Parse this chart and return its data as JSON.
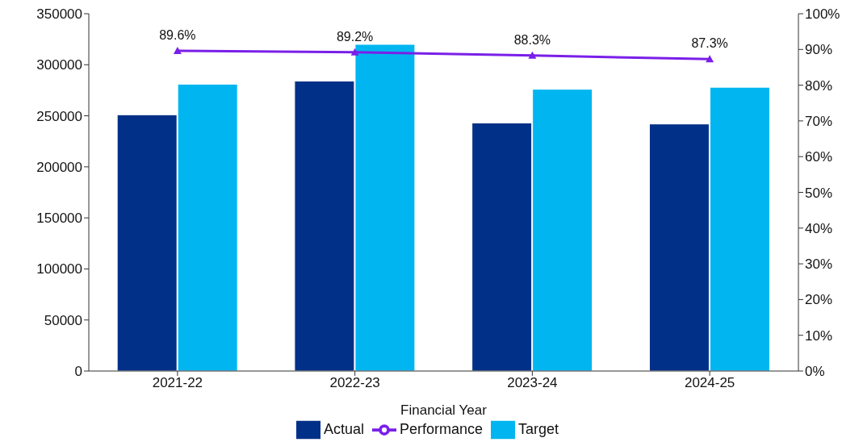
{
  "chart_data": {
    "type": "bar",
    "xlabel": "Financial Year",
    "categories": [
      "2021-22",
      "2022-23",
      "2023-24",
      "2024-25"
    ],
    "series": [
      {
        "name": "Actual",
        "color": "#003087",
        "values": [
          251000,
          284000,
          243000,
          242000
        ]
      },
      {
        "name": "Target",
        "color": "#00b5f0",
        "values": [
          281000,
          320000,
          276000,
          278000
        ]
      },
      {
        "name": "Performance",
        "type": "line",
        "axis": "y2",
        "color": "#7a1fe8",
        "values": [
          89.6,
          89.2,
          88.3,
          87.3
        ],
        "value_labels": [
          "89.6%",
          "89.2%",
          "88.3%",
          "87.3%"
        ],
        "marker": "triangle"
      }
    ],
    "ylim": [
      0,
      350000
    ],
    "yticks": [
      0,
      50000,
      100000,
      150000,
      200000,
      250000,
      300000,
      350000
    ],
    "y2lim": [
      0,
      100
    ],
    "y2ticks": [
      {
        "value": 0,
        "label": "0%"
      },
      {
        "value": 10,
        "label": "10%"
      },
      {
        "value": 20,
        "label": "20%"
      },
      {
        "value": 30,
        "label": "30%"
      },
      {
        "value": 40,
        "label": "40%"
      },
      {
        "value": 50,
        "label": "50%"
      },
      {
        "value": 60,
        "label": "60%"
      },
      {
        "value": 70,
        "label": "70%"
      },
      {
        "value": 80,
        "label": "80%"
      },
      {
        "value": 90,
        "label": "90%"
      },
      {
        "value": 100,
        "label": "100%"
      }
    ],
    "grid": false,
    "legend": "bottom"
  }
}
